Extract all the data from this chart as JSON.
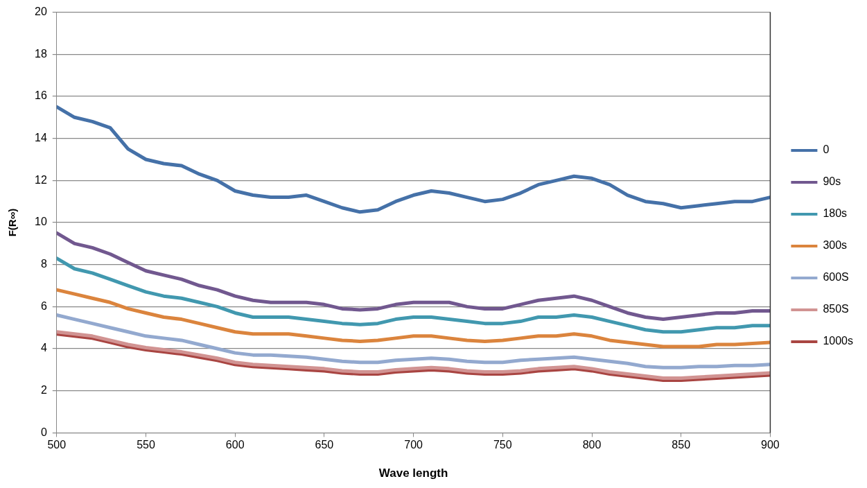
{
  "chart_data": {
    "type": "line",
    "xlabel": "Wave length",
    "ylabel": "F(R∞)",
    "x": [
      500,
      510,
      520,
      530,
      540,
      550,
      560,
      570,
      580,
      590,
      600,
      610,
      620,
      630,
      640,
      650,
      660,
      670,
      680,
      690,
      700,
      710,
      720,
      730,
      740,
      750,
      760,
      770,
      780,
      790,
      800,
      810,
      820,
      830,
      840,
      850,
      860,
      870,
      880,
      890,
      900
    ],
    "series": [
      {
        "name": "0",
        "color": "#4571a8",
        "values": [
          15.5,
          15,
          14.8,
          14.5,
          13.5,
          13,
          12.8,
          12.7,
          12.3,
          12,
          11.5,
          11.3,
          11.2,
          11.2,
          11.3,
          11,
          10.7,
          10.5,
          10.6,
          11,
          11.3,
          11.5,
          11.4,
          11.2,
          11,
          11.1,
          11.4,
          11.8,
          12,
          12.2,
          12.1,
          11.8,
          11.3,
          11,
          10.9,
          10.7,
          10.8,
          10.9,
          11,
          11,
          11.2
        ]
      },
      {
        "name": "90s",
        "color": "#71588f",
        "values": [
          9.5,
          9,
          8.8,
          8.5,
          8.1,
          7.7,
          7.5,
          7.3,
          7,
          6.8,
          6.5,
          6.3,
          6.2,
          6.2,
          6.2,
          6.1,
          5.9,
          5.85,
          5.9,
          6.1,
          6.2,
          6.2,
          6.2,
          6,
          5.9,
          5.9,
          6.1,
          6.3,
          6.4,
          6.5,
          6.3,
          6,
          5.7,
          5.5,
          5.4,
          5.5,
          5.6,
          5.7,
          5.7,
          5.8,
          5.8
        ]
      },
      {
        "name": "180s",
        "color": "#4198af",
        "values": [
          8.3,
          7.8,
          7.6,
          7.3,
          7,
          6.7,
          6.5,
          6.4,
          6.2,
          6,
          5.7,
          5.5,
          5.5,
          5.5,
          5.4,
          5.3,
          5.2,
          5.15,
          5.2,
          5.4,
          5.5,
          5.5,
          5.4,
          5.3,
          5.2,
          5.2,
          5.3,
          5.5,
          5.5,
          5.6,
          5.5,
          5.3,
          5.1,
          4.9,
          4.8,
          4.8,
          4.9,
          5,
          5,
          5.1,
          5.1
        ]
      },
      {
        "name": "300s",
        "color": "#db843d",
        "values": [
          6.8,
          6.6,
          6.4,
          6.2,
          5.9,
          5.7,
          5.5,
          5.4,
          5.2,
          5,
          4.8,
          4.7,
          4.7,
          4.7,
          4.6,
          4.5,
          4.4,
          4.35,
          4.4,
          4.5,
          4.6,
          4.6,
          4.5,
          4.4,
          4.35,
          4.4,
          4.5,
          4.6,
          4.6,
          4.7,
          4.6,
          4.4,
          4.3,
          4.2,
          4.1,
          4.1,
          4.1,
          4.2,
          4.2,
          4.25,
          4.3
        ]
      },
      {
        "name": "600S",
        "color": "#93a9cf",
        "values": [
          5.6,
          5.4,
          5.2,
          5,
          4.8,
          4.6,
          4.5,
          4.4,
          4.2,
          4,
          3.8,
          3.7,
          3.7,
          3.65,
          3.6,
          3.5,
          3.4,
          3.35,
          3.35,
          3.45,
          3.5,
          3.55,
          3.5,
          3.4,
          3.35,
          3.35,
          3.45,
          3.5,
          3.55,
          3.6,
          3.5,
          3.4,
          3.3,
          3.15,
          3.1,
          3.1,
          3.15,
          3.15,
          3.2,
          3.2,
          3.25
        ]
      },
      {
        "name": "850S",
        "color": "#d19392",
        "values": [
          4.8,
          4.7,
          4.6,
          4.4,
          4.2,
          4.05,
          3.95,
          3.85,
          3.7,
          3.55,
          3.35,
          3.25,
          3.2,
          3.15,
          3.1,
          3.05,
          2.95,
          2.9,
          2.9,
          3,
          3.05,
          3.1,
          3.05,
          2.95,
          2.9,
          2.9,
          2.95,
          3.05,
          3.1,
          3.15,
          3.05,
          2.9,
          2.8,
          2.7,
          2.6,
          2.6,
          2.65,
          2.7,
          2.75,
          2.8,
          2.85
        ]
      },
      {
        "name": "1000s",
        "color": "#a94542",
        "values": [
          4.7,
          4.6,
          4.5,
          4.3,
          4.1,
          3.95,
          3.85,
          3.75,
          3.6,
          3.45,
          3.25,
          3.15,
          3.1,
          3.05,
          3,
          2.95,
          2.85,
          2.8,
          2.8,
          2.9,
          2.95,
          3,
          2.95,
          2.85,
          2.8,
          2.8,
          2.85,
          2.95,
          3,
          3.05,
          2.95,
          2.8,
          2.7,
          2.6,
          2.5,
          2.5,
          2.55,
          2.6,
          2.65,
          2.7,
          2.75
        ]
      }
    ],
    "xlim": [
      500,
      900
    ],
    "xticks": [
      500,
      550,
      600,
      650,
      700,
      750,
      800,
      850,
      900
    ],
    "ylim": [
      0,
      20
    ],
    "yticks": [
      0,
      2,
      4,
      6,
      8,
      10,
      12,
      14,
      16,
      18,
      20
    ],
    "grid": "y",
    "legend": "right",
    "marker": "none",
    "line_style": "solid"
  }
}
